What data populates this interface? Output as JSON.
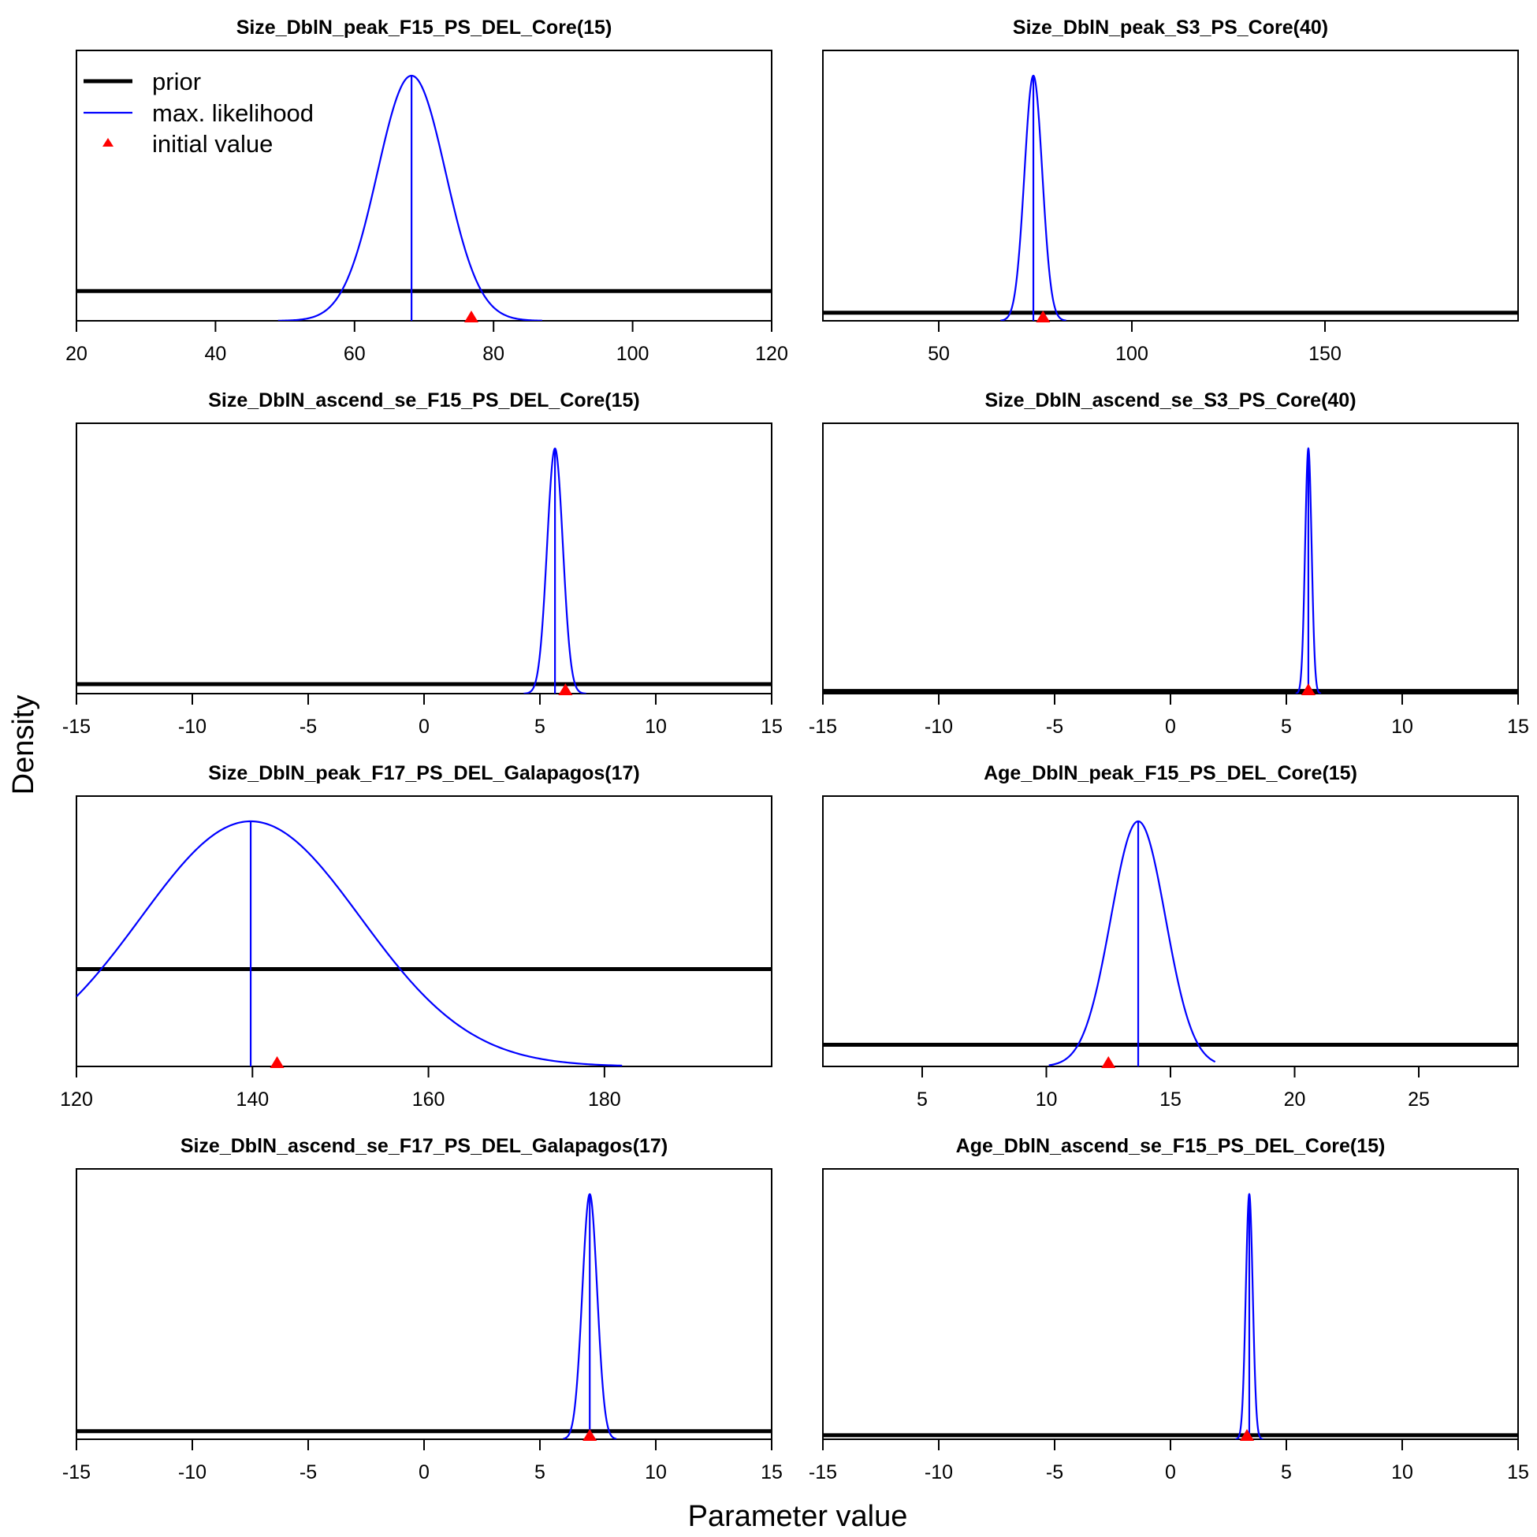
{
  "figure": {
    "ylabel": "Density",
    "xlabel": "Parameter value",
    "legend": {
      "placement": "top-left of first panel",
      "items": [
        {
          "label": "prior",
          "style": "thick-line",
          "color": "#000000"
        },
        {
          "label": "max. likelihood",
          "style": "thin-line",
          "color": "#0000ff"
        },
        {
          "label": "initial value",
          "style": "triangle",
          "color": "#ff0000"
        }
      ]
    },
    "colors": {
      "prior": "#000000",
      "likelihood": "#0000ff",
      "initial": "#ff0000"
    }
  },
  "chart_data": [
    {
      "type": "line",
      "title": "Size_DblN_peak_F15_PS_DEL_Core(15)",
      "xlim": [
        20,
        120
      ],
      "ticks": [
        20,
        40,
        60,
        80,
        100,
        120
      ],
      "prior_level": 0.11,
      "mle": 68.2,
      "sd": 4.9,
      "curve_range": [
        49,
        87
      ],
      "initial": 76.8
    },
    {
      "type": "line",
      "title": "Size_DblN_peak_S3_PS_Core(40)",
      "xlim": [
        20,
        200
      ],
      "ticks": [
        50,
        100,
        150
      ],
      "prior_level": 0.03,
      "mle": 74.5,
      "sd": 2.3,
      "curve_range": [
        66,
        83
      ],
      "initial": 77.0
    },
    {
      "type": "line",
      "title": "Size_DblN_ascend_se_F15_PS_DEL_Core(15)",
      "xlim": [
        -15,
        15
      ],
      "ticks": [
        -15,
        -10,
        -5,
        0,
        5,
        10,
        15
      ],
      "prior_level": 0.035,
      "mle": 5.65,
      "sd": 0.34,
      "curve_range": [
        4.3,
        7.0
      ],
      "initial": 6.1
    },
    {
      "type": "line",
      "title": "Size_DblN_ascend_se_S3_PS_Core(40)",
      "xlim": [
        -15,
        15
      ],
      "ticks": [
        -15,
        -10,
        -5,
        0,
        5,
        10,
        15
      ],
      "prior_level": 0.01,
      "mle": 5.95,
      "sd": 0.14,
      "curve_range": [
        5.4,
        6.5
      ],
      "initial": 5.95
    },
    {
      "type": "line",
      "title": "Size_DblN_peak_F17_PS_DEL_Galapagos(17)",
      "xlim": [
        120,
        199
      ],
      "ticks": [
        120,
        140,
        160,
        180
      ],
      "prior_level": 0.36,
      "mle": 139.8,
      "sd": 12.5,
      "curve_range": [
        120,
        182
      ],
      "initial": 142.8
    },
    {
      "type": "line",
      "title": "Age_DblN_peak_F15_PS_DEL_Core(15)",
      "xlim": [
        1,
        29
      ],
      "ticks": [
        5,
        10,
        15,
        20,
        25
      ],
      "prior_level": 0.08,
      "mle": 13.7,
      "sd": 1.1,
      "curve_range": [
        10.1,
        16.8
      ],
      "initial": 12.5
    },
    {
      "type": "line",
      "title": "Size_DblN_ascend_se_F17_PS_DEL_Galapagos(17)",
      "xlim": [
        -15,
        15
      ],
      "ticks": [
        -15,
        -10,
        -5,
        0,
        5,
        10,
        15
      ],
      "prior_level": 0.03,
      "mle": 7.15,
      "sd": 0.32,
      "curve_range": [
        6.0,
        8.3
      ],
      "initial": 7.15
    },
    {
      "type": "line",
      "title": "Age_DblN_ascend_se_F15_PS_DEL_Core(15)",
      "xlim": [
        -15,
        15
      ],
      "ticks": [
        -15,
        -10,
        -5,
        0,
        5,
        10,
        15
      ],
      "prior_level": 0.015,
      "mle": 3.4,
      "sd": 0.15,
      "curve_range": [
        2.8,
        4.0
      ],
      "initial": 3.3
    }
  ]
}
